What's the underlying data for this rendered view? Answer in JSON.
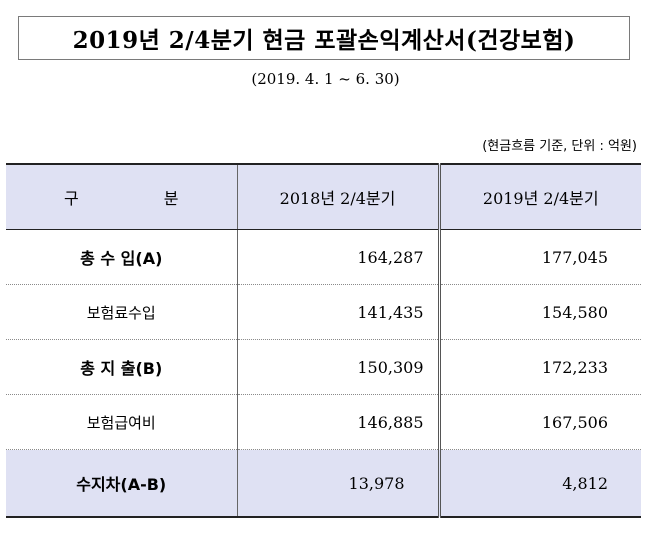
{
  "title": "2019년 2/4분기 현금 포괄손익계산서(건강보험)",
  "period": "(2019. 4. 1 ~ 6. 30)",
  "unit_note": "(현금흐름 기준, 단위 : 억원)",
  "table": {
    "headers": [
      "구 분",
      "2018년 2/4분기",
      "2019년 2/4분기"
    ],
    "rows": [
      {
        "label": "총 수 입(A)",
        "y2018": "164,287",
        "y2019": "177,045"
      },
      {
        "label": "보험료수입",
        "y2018": "141,435",
        "y2019": "154,580"
      },
      {
        "label": "총 지 출(B)",
        "y2018": "150,309",
        "y2019": "172,233"
      },
      {
        "label": "보험급여비",
        "y2018": "146,885",
        "y2019": "167,506"
      },
      {
        "label": "수지차(A-B)",
        "y2018": "13,978",
        "y2019": "4,812"
      }
    ]
  }
}
